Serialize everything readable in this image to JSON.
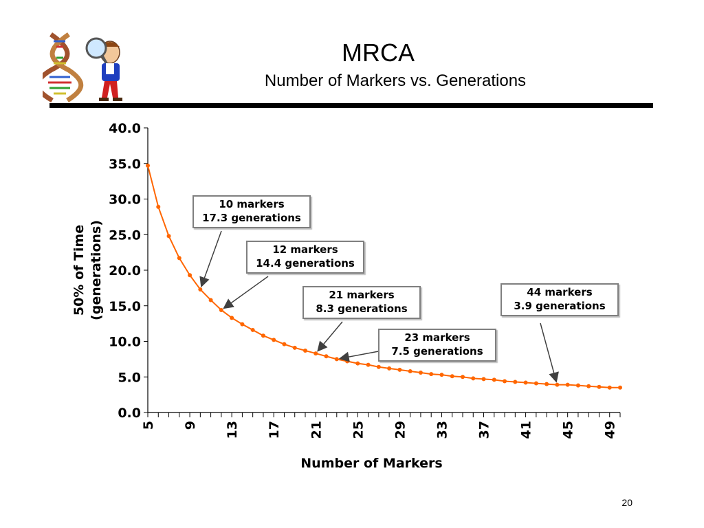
{
  "slide": {
    "title": "MRCA",
    "subtitle": "Number of Markers vs. Generations",
    "page_number": "20"
  },
  "colors": {
    "series": "#ff6600",
    "axis": "#000000",
    "box_border": "#7f7f7f"
  },
  "logo": {
    "icon": "dna-helix-and-scientist-with-magnifying-glass"
  },
  "chart_data": {
    "type": "line",
    "title": "",
    "xlabel": "Number of Markers",
    "ylabel": "50% of Time (generations)",
    "ylabel_lines": [
      "50% of Time",
      "(generations)"
    ],
    "xlim": [
      5,
      50
    ],
    "ylim": [
      0,
      40
    ],
    "yticks": [
      "0.0",
      "5.0",
      "10.0",
      "15.0",
      "20.0",
      "25.0",
      "30.0",
      "35.0",
      "40.0"
    ],
    "xtick_labels": [
      "5",
      "9",
      "13",
      "17",
      "21",
      "25",
      "29",
      "33",
      "37",
      "41",
      "45",
      "49"
    ],
    "grid": false,
    "legend": "none",
    "series": [
      {
        "x": [
          5,
          6,
          7,
          8,
          9,
          10,
          11,
          12,
          13,
          14,
          15,
          16,
          17,
          18,
          19,
          20,
          21,
          22,
          23,
          24,
          25,
          26,
          27,
          28,
          29,
          30,
          31,
          32,
          33,
          34,
          35,
          36,
          37,
          38,
          39,
          40,
          41,
          42,
          43,
          44,
          45,
          46,
          47,
          48,
          49,
          50
        ],
        "values": [
          34.7,
          28.9,
          24.8,
          21.7,
          19.3,
          17.3,
          15.8,
          14.4,
          13.3,
          12.4,
          11.6,
          10.8,
          10.2,
          9.6,
          9.1,
          8.7,
          8.3,
          7.9,
          7.5,
          7.2,
          6.9,
          6.7,
          6.4,
          6.2,
          6.0,
          5.8,
          5.6,
          5.4,
          5.3,
          5.1,
          5.0,
          4.8,
          4.7,
          4.6,
          4.4,
          4.3,
          4.2,
          4.1,
          4.0,
          3.9,
          3.9,
          3.8,
          3.7,
          3.6,
          3.5,
          3.5
        ]
      }
    ],
    "annotations": [
      {
        "lines": [
          "10 markers",
          "17.3 generations"
        ],
        "x": 10,
        "y": 17.3
      },
      {
        "lines": [
          "12 markers",
          "14.4 generations"
        ],
        "x": 12,
        "y": 14.4
      },
      {
        "lines": [
          "21 markers",
          "8.3 generations"
        ],
        "x": 21,
        "y": 8.3
      },
      {
        "lines": [
          "23 markers",
          "7.5 generations"
        ],
        "x": 23,
        "y": 7.5
      },
      {
        "lines": [
          "44 markers",
          "3.9 generations"
        ],
        "x": 44,
        "y": 3.9
      }
    ]
  }
}
